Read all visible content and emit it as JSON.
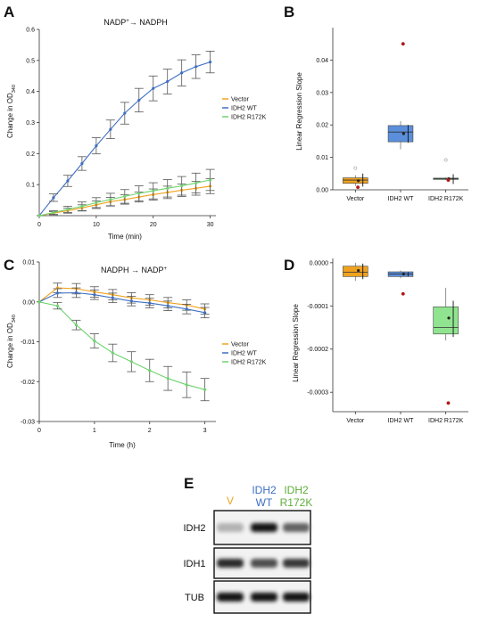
{
  "panels": {
    "A": {
      "letter": "A",
      "chart_data": {
        "type": "line",
        "title": "NADP⁺→ NADPH",
        "xlabel": "Time (min)",
        "ylabel": "Change in OD340",
        "xlim": [
          0,
          31
        ],
        "ylim": [
          0,
          0.6
        ],
        "x_ticks": [
          0,
          10,
          20,
          30
        ],
        "y_ticks": [
          0,
          0.1,
          0.2,
          0.3,
          0.4,
          0.5,
          0.6
        ],
        "x_tick_labels": [
          "0",
          "10",
          "20",
          "30"
        ],
        "y_tick_labels": [
          "",
          "0.1",
          "0.2",
          "0.3",
          "0.4",
          "0.5",
          "0.6"
        ],
        "x": [
          0,
          2.5,
          5,
          7.5,
          10,
          12.5,
          15,
          17.5,
          20,
          22.5,
          25,
          27.5,
          30
        ],
        "legend": "right",
        "series": [
          {
            "name": "Vector",
            "color": "#f0a21e",
            "values": [
              0,
              0.008,
              0.016,
              0.025,
              0.035,
              0.045,
              0.052,
              0.06,
              0.068,
              0.075,
              0.082,
              0.088,
              0.095
            ],
            "errors": [
              0,
              0.005,
              0.008,
              0.01,
              0.012,
              0.014,
              0.015,
              0.016,
              0.018,
              0.02,
              0.02,
              0.022,
              0.024
            ]
          },
          {
            "name": "IDH2 WT",
            "color": "#3f6fc2",
            "values": [
              0,
              0.058,
              0.112,
              0.168,
              0.225,
              0.278,
              0.33,
              0.372,
              0.41,
              0.432,
              0.46,
              0.48,
              0.495
            ],
            "errors": [
              0,
              0.012,
              0.018,
              0.022,
              0.026,
              0.03,
              0.035,
              0.038,
              0.04,
              0.04,
              0.042,
              0.038,
              0.035
            ]
          },
          {
            "name": "IDH2 R172K",
            "color": "#6fd36f",
            "values": [
              0,
              0.01,
              0.02,
              0.03,
              0.042,
              0.052,
              0.062,
              0.072,
              0.08,
              0.088,
              0.096,
              0.105,
              0.115
            ],
            "errors": [
              0,
              0.006,
              0.01,
              0.014,
              0.016,
              0.02,
              0.022,
              0.024,
              0.026,
              0.028,
              0.03,
              0.032,
              0.034
            ]
          }
        ]
      }
    },
    "B": {
      "letter": "B",
      "chart_data": {
        "type": "box",
        "ylabel": "Linear Regression Slope",
        "ylim": [
          0,
          0.05
        ],
        "y_ticks": [
          0,
          0.01,
          0.02,
          0.03,
          0.04
        ],
        "y_tick_labels": [
          "0.00",
          "0.01",
          "0.02",
          "0.03",
          "0.04"
        ],
        "categories": [
          "Vector",
          "IDH2 WT",
          "IDH2 R172K"
        ],
        "boxes": [
          {
            "color": "#f0a21e",
            "q1": 0.002,
            "median": 0.003,
            "q3": 0.0037,
            "whisker_low": 0.0012,
            "whisker_high": 0.0045,
            "mean": 0.0028,
            "ci": [
              0.001,
              0.005
            ],
            "outliers": [
              0.0008
            ],
            "hollow": [
              0.0067
            ]
          },
          {
            "color": "#5b8fdb",
            "q1": 0.0148,
            "median": 0.0178,
            "q3": 0.0198,
            "whisker_low": 0.0125,
            "whisker_high": 0.0212,
            "mean": 0.0173,
            "ci": [
              0.0145,
              0.02
            ],
            "outliers": [
              0.045
            ],
            "hollow": []
          },
          {
            "color": "#6fd36f",
            "q1": 0.0032,
            "median": 0.0034,
            "q3": 0.0036,
            "whisker_low": 0.003,
            "whisker_high": 0.0038,
            "mean": 0.0034,
            "ci": [
              0.0018,
              0.0048
            ],
            "outliers": [
              0.003
            ],
            "hollow": [
              0.0092
            ]
          }
        ]
      }
    },
    "C": {
      "letter": "C",
      "chart_data": {
        "type": "line",
        "title": "NADPH → NADP⁺",
        "xlabel": "Time (h)",
        "ylabel": "Change in OD340",
        "xlim": [
          0,
          3.2
        ],
        "ylim": [
          -0.03,
          0.01
        ],
        "x_ticks": [
          0,
          1,
          2,
          3
        ],
        "y_ticks": [
          -0.03,
          -0.02,
          -0.01,
          0,
          0.01
        ],
        "x_tick_labels": [
          "0",
          "1",
          "2",
          "3"
        ],
        "y_tick_labels": [
          "-0.03",
          "-0.02",
          "-0.01",
          "0.00",
          "0.01"
        ],
        "x": [
          0,
          0.33,
          0.67,
          1,
          1.33,
          1.67,
          2,
          2.33,
          2.67,
          3
        ],
        "legend": "right",
        "series": [
          {
            "name": "Vector",
            "color": "#f0a21e",
            "values": [
              0,
              0.0035,
              0.0033,
              0.0025,
              0.0018,
              0.001,
              0.0005,
              -0.0002,
              -0.0008,
              -0.0018
            ],
            "errors": [
              0,
              0.0012,
              0.0013,
              0.0013,
              0.0013,
              0.0013,
              0.0013,
              0.0013,
              0.0013,
              0.0013
            ]
          },
          {
            "name": "IDH2 WT",
            "color": "#3f6fc2",
            "values": [
              0,
              0.0022,
              0.0023,
              0.0018,
              0.001,
              0.0002,
              -0.0003,
              -0.001,
              -0.0018,
              -0.0027
            ],
            "errors": [
              0,
              0.0011,
              0.0012,
              0.0012,
              0.0012,
              0.0012,
              0.0012,
              0.0012,
              0.0012,
              0.0013
            ]
          },
          {
            "name": "IDH2 R172K",
            "color": "#6fd36f",
            "values": [
              0,
              -0.001,
              -0.0058,
              -0.0098,
              -0.0128,
              -0.015,
              -0.0172,
              -0.0192,
              -0.0208,
              -0.022
            ],
            "errors": [
              0,
              0.0008,
              0.0012,
              0.0018,
              0.0022,
              0.0025,
              0.0028,
              0.003,
              0.0032,
              0.0028
            ]
          }
        ]
      }
    },
    "D": {
      "letter": "D",
      "chart_data": {
        "type": "box",
        "ylabel": "Linear Regression Slope",
        "ylim": [
          -0.000345,
          1e-05
        ],
        "y_ticks": [
          0,
          -0.0001,
          -0.0002,
          -0.0003
        ],
        "y_tick_labels": [
          "0.0000",
          "-0.0001",
          "-0.0002",
          "-0.0003"
        ],
        "categories": [
          "Vector",
          "IDH2 WT",
          "IDH2 R172K"
        ],
        "boxes": [
          {
            "color": "#f0a21e",
            "q1": -3.2e-05,
            "median": -2.2e-05,
            "q3": -8e-06,
            "whisker_low": -4.2e-05,
            "whisker_high": 0,
            "mean": -1.8e-05,
            "ci": [
              -3.8e-05,
              -2e-06
            ],
            "outliers": [],
            "hollow": []
          },
          {
            "color": "#5b8fdb",
            "q1": -3.2e-05,
            "median": -2.6e-05,
            "q3": -2.1e-05,
            "whisker_low": -3.6e-05,
            "whisker_high": -1.8e-05,
            "mean": -2.6e-05,
            "ci": [
              -3.2e-05,
              -2.2e-05
            ],
            "outliers": [
              -7.2e-05
            ],
            "hollow": []
          },
          {
            "color": "#90e490",
            "q1": -0.000165,
            "median": -0.00015,
            "q3": -0.000102,
            "whisker_low": -0.00018,
            "whisker_high": -5.8e-05,
            "mean": -0.000128,
            "ci": [
              -0.000172,
              -8.8e-05
            ],
            "outliers": [
              -0.000325
            ],
            "hollow": []
          }
        ]
      }
    },
    "E": {
      "letter": "E",
      "lanes": [
        {
          "top": "V",
          "bottom": "",
          "color": "#f0a21e"
        },
        {
          "top": "IDH2",
          "bottom": "WT",
          "color": "#3f6fc2"
        },
        {
          "top": "IDH2",
          "bottom": "R172K",
          "color": "#5fae3a"
        }
      ],
      "bands": [
        {
          "label": "IDH2",
          "intensity": [
            0.25,
            0.95,
            0.6
          ]
        },
        {
          "label": "IDH1",
          "intensity": [
            0.85,
            0.7,
            0.8
          ]
        },
        {
          "label": "TUB",
          "intensity": [
            0.95,
            0.95,
            0.95
          ]
        }
      ]
    }
  }
}
